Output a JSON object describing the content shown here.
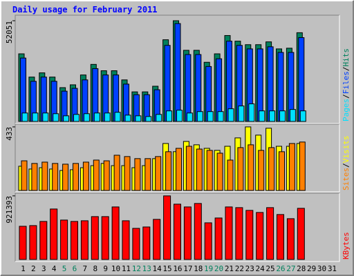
{
  "chart_data": [
    {
      "type": "bar",
      "title": "Daily usage for February 2011",
      "ylim": [
        0,
        54200
      ],
      "yticks": [
        52051
      ],
      "legend_separator": "/",
      "series": [
        {
          "name": "Hits",
          "color": "#00805c",
          "values": [
            34943,
            22932,
            25115,
            22932,
            17472,
            18927,
            24023,
            29483,
            26207,
            26207,
            21475,
            15288,
            15288,
            18200,
            42222,
            52051,
            36763,
            36763,
            30575,
            34943,
            44406,
            41495,
            39675,
            39675,
            41131,
            37491,
            37855,
            45862,
            null,
            null,
            null
          ]
        },
        {
          "name": "Files",
          "color": "#0040ff",
          "values": [
            32759,
            20747,
            22932,
            20747,
            15652,
            17107,
            21475,
            27299,
            24023,
            24023,
            19291,
            13832,
            13832,
            16379,
            39311,
            50595,
            34579,
            34579,
            28391,
            32395,
            41495,
            39311,
            37491,
            37491,
            38583,
            35671,
            35671,
            43315,
            null,
            null,
            null
          ]
        },
        {
          "name": "Pages",
          "color": "#00e0ff",
          "values": [
            4368,
            4368,
            4368,
            4004,
            2912,
            3640,
            4004,
            4368,
            4368,
            4732,
            3276,
            2912,
            2548,
            3640,
            5460,
            5824,
            4368,
            5096,
            5096,
            5096,
            6552,
            8008,
            9100,
            5460,
            5460,
            5460,
            6188,
            5460,
            null,
            null,
            null
          ]
        }
      ]
    },
    {
      "type": "bar",
      "ylim": [
        0,
        442
      ],
      "yticks": [
        433
      ],
      "legend_separator": "/",
      "series": [
        {
          "name": "Visits",
          "color": "#ffff00",
          "values": [
            165,
            146,
            155,
            146,
            136,
            141,
            155,
            169,
            184,
            169,
            169,
            155,
            169,
            217,
            320,
            264,
            334,
            311,
            287,
            273,
            301,
            358,
            433,
            377,
            424,
            301,
            301,
            320,
            null,
            null,
            null
          ]
        },
        {
          "name": "Sites",
          "color": "#ff8000",
          "values": [
            202,
            184,
            193,
            184,
            179,
            184,
            193,
            207,
            202,
            240,
            231,
            217,
            217,
            231,
            264,
            287,
            301,
            282,
            273,
            254,
            207,
            292,
            311,
            273,
            292,
            264,
            320,
            330,
            null,
            null,
            null
          ]
        }
      ]
    },
    {
      "type": "bar",
      "ylim": [
        0,
        940000
      ],
      "yticks": [
        921393
      ],
      "categories": [
        "1",
        "2",
        "3",
        "4",
        "5",
        "6",
        "7",
        "8",
        "9",
        "10",
        "11",
        "12",
        "13",
        "14",
        "15",
        "16",
        "17",
        "18",
        "19",
        "20",
        "21",
        "22",
        "23",
        "24",
        "25",
        "26",
        "27",
        "28",
        "29",
        "30",
        "31"
      ],
      "category_colors": [
        "#000000",
        "#000000",
        "#000000",
        "#000000",
        "#00805c",
        "#00805c",
        "#000000",
        "#000000",
        "#000000",
        "#000000",
        "#000000",
        "#00805c",
        "#00805c",
        "#000000",
        "#000000",
        "#000000",
        "#000000",
        "#000000",
        "#00805c",
        "#00805c",
        "#000000",
        "#000000",
        "#000000",
        "#000000",
        "#000000",
        "#00805c",
        "#00805c",
        "#000000",
        "#000000",
        "#000000",
        "#000000"
      ],
      "series": [
        {
          "name": "KBytes",
          "color": "#ff0000",
          "values": [
            480727,
            490742,
            550833,
            731105,
            570863,
            550833,
            560848,
            620939,
            620939,
            761151,
            560848,
            450681,
            470712,
            580878,
            921393,
            801211,
            761151,
            811226,
            530802,
            600908,
            761151,
            751136,
            711075,
            681030,
            751136,
            650984,
            590893,
            741121,
            null,
            null,
            null
          ]
        }
      ]
    }
  ]
}
